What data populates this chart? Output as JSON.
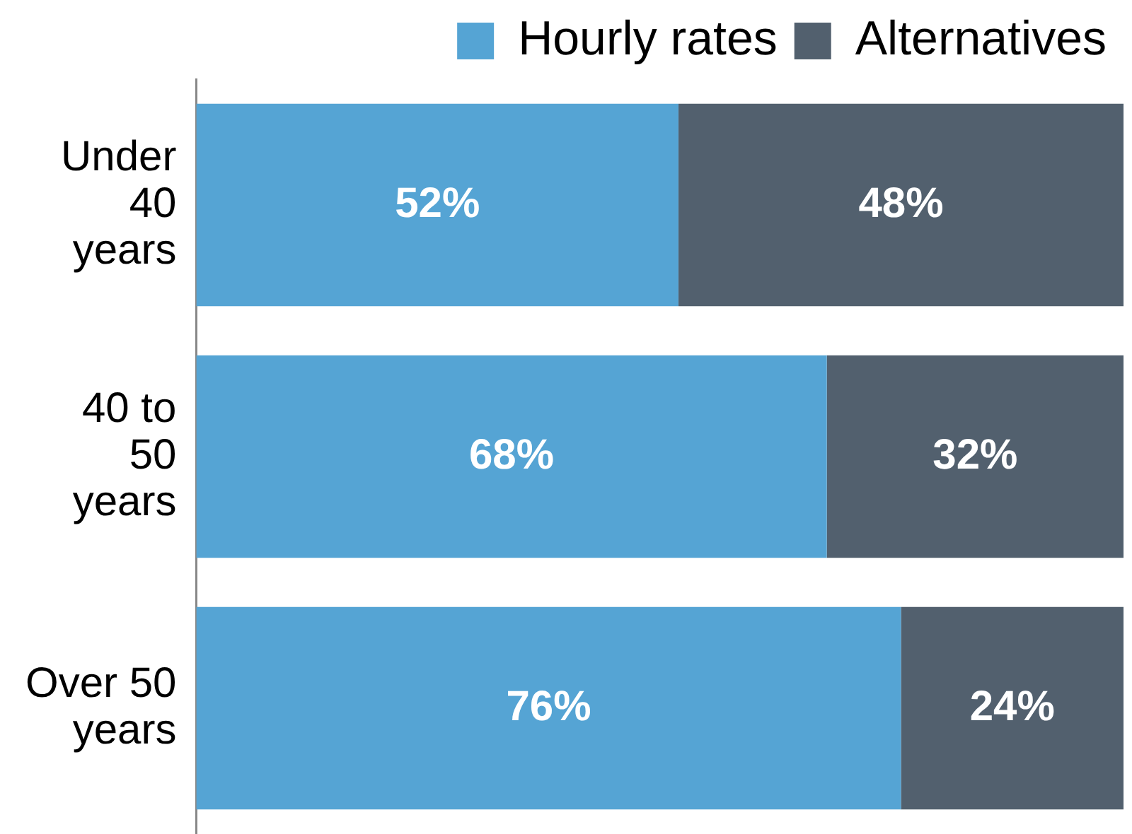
{
  "chart_data": {
    "type": "bar",
    "orientation": "horizontal",
    "stacked": true,
    "categories": [
      "Under\n40\nyears",
      "40 to\n50\nyears",
      "Over 50\nyears"
    ],
    "series": [
      {
        "name": "Hourly rates",
        "color": "#55a4d4",
        "values": [
          52,
          68,
          76
        ],
        "value_labels": [
          "52%",
          "68%",
          "76%"
        ]
      },
      {
        "name": "Alternatives",
        "color": "#52606e",
        "values": [
          48,
          32,
          24
        ],
        "value_labels": [
          "48%",
          "32%",
          "24%"
        ]
      }
    ],
    "xlim": [
      0,
      100
    ],
    "tick_labels": "y",
    "legend": "top right"
  }
}
